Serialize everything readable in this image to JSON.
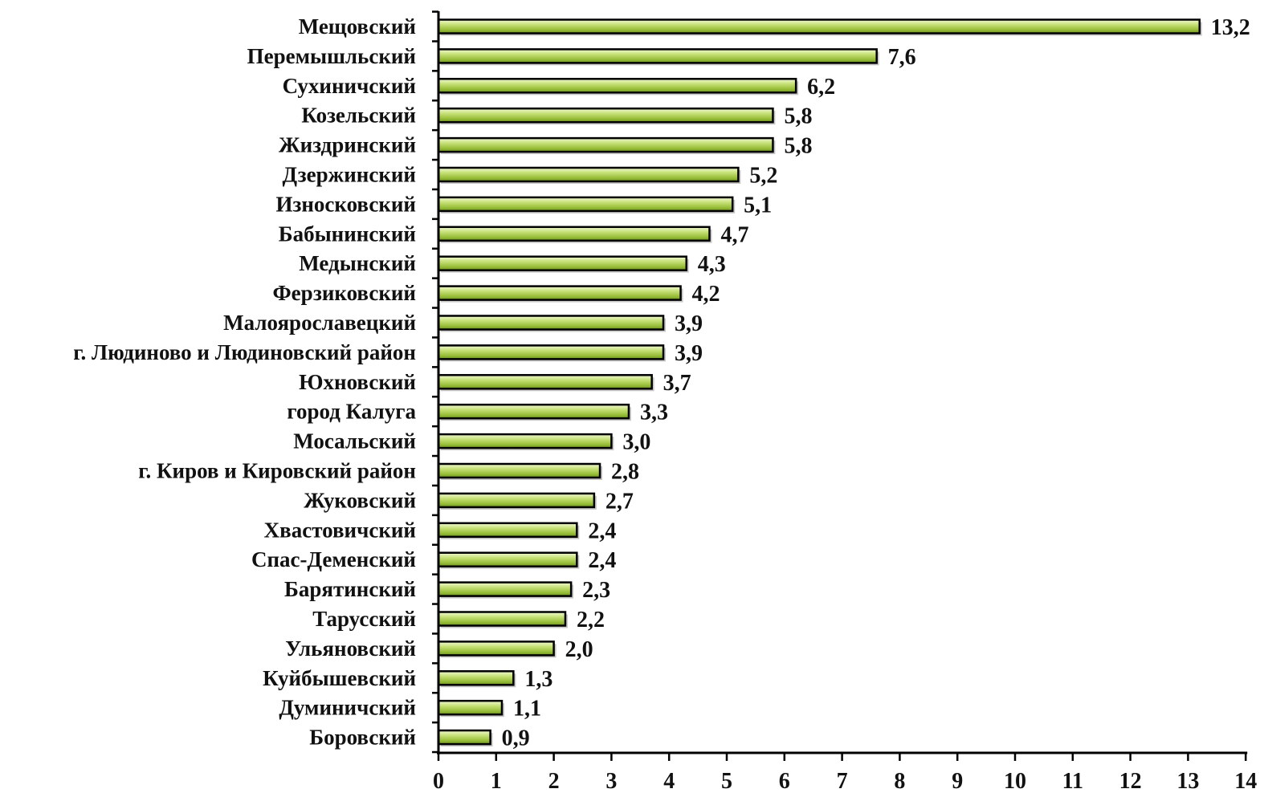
{
  "chart_data": {
    "type": "bar",
    "orientation": "horizontal",
    "title": "",
    "xlabel": "",
    "ylabel": "",
    "xlim": [
      0,
      14
    ],
    "x_ticks": [
      "0",
      "1",
      "2",
      "3",
      "4",
      "5",
      "6",
      "7",
      "8",
      "9",
      "10",
      "11",
      "12",
      "13",
      "14"
    ],
    "grid": false,
    "legend": "none",
    "bar_color": "#9bc23c",
    "bar_highlight": "#dff0a8",
    "bar_outline": "#000000",
    "categories": [
      "Мещовский",
      "Перемышльский",
      "Сухиничский",
      "Козельский",
      "Жиздринский",
      "Дзержинский",
      "Износковский",
      "Бабынинский",
      "Медынский",
      "Ферзиковский",
      "Малоярославецкий",
      "г. Людиново и Людиновский район",
      "Юхновский",
      "город Калуга",
      "Мосальский",
      "г. Киров и Кировский район",
      "Жуковский",
      "Хвастовичский",
      "Спас-Деменский",
      "Барятинский",
      "Тарусский",
      "Ульяновский",
      "Куйбышевский",
      "Думиничский",
      "Боровский"
    ],
    "values": [
      13.2,
      7.6,
      6.2,
      5.8,
      5.8,
      5.2,
      5.1,
      4.7,
      4.3,
      4.2,
      3.9,
      3.9,
      3.7,
      3.3,
      3.0,
      2.8,
      2.7,
      2.4,
      2.4,
      2.3,
      2.2,
      2.0,
      1.3,
      1.1,
      0.9
    ],
    "value_labels": [
      "13,2",
      "7,6",
      "6,2",
      "5,8",
      "5,8",
      "5,2",
      "5,1",
      "4,7",
      "4,3",
      "4,2",
      "3,9",
      "3,9",
      "3,7",
      "3,3",
      "3,0",
      "2,8",
      "2,7",
      "2,4",
      "2,4",
      "2,3",
      "2,2",
      "2,0",
      "1,3",
      "1,1",
      "0,9"
    ]
  }
}
